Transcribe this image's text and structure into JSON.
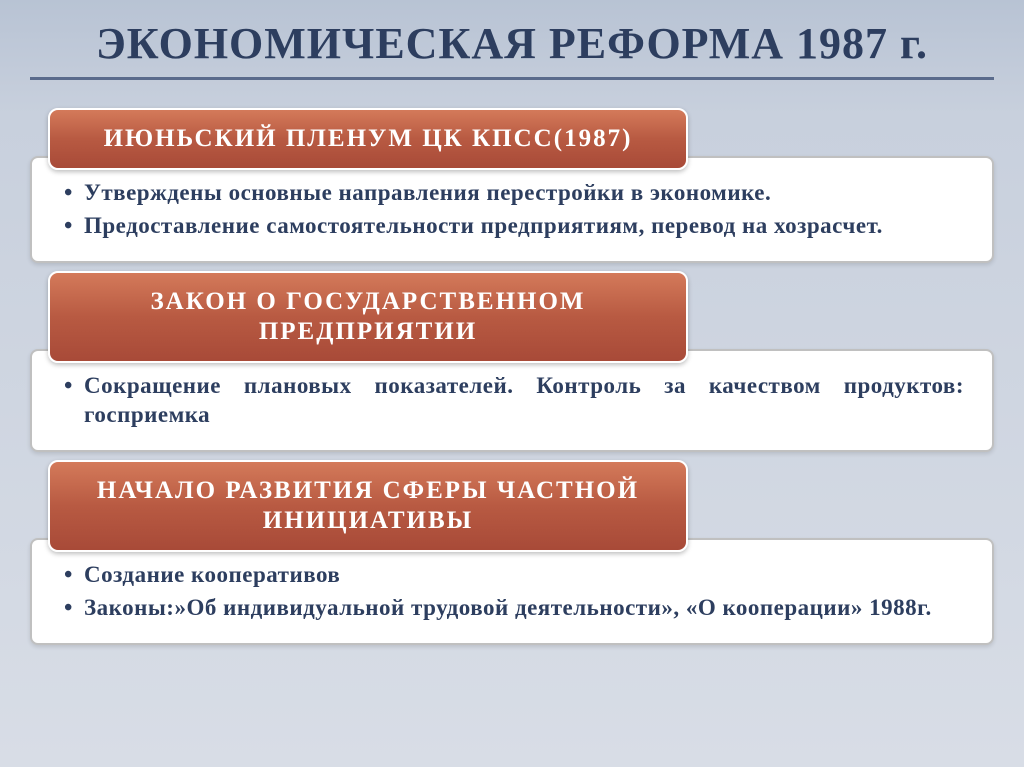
{
  "title": "ЭКОНОМИЧЕСКАЯ РЕФОРМА 1987 г.",
  "colors": {
    "title_color": "#2d3e5f",
    "underline_color": "#5a6b8c",
    "header_gradient_top": "#d47a5a",
    "header_gradient_mid": "#b85a42",
    "header_gradient_bottom": "#a84a38",
    "header_text": "#ffffff",
    "body_bg": "#ffffff",
    "body_text": "#2d3e5f",
    "body_border": "#c0c0c0",
    "slide_bg_top": "#b8c3d4",
    "slide_bg_bottom": "#d8dde6"
  },
  "typography": {
    "title_fontsize": 44,
    "header_fontsize": 25,
    "body_fontsize": 23,
    "font_family": "Georgia, Times New Roman, serif"
  },
  "sections": [
    {
      "header": "ИЮНЬСКИЙ  ПЛЕНУМ  ЦК  КПСС(1987)",
      "bullets": [
        "Утверждены основные направления перестройки в экономике.",
        "Предоставление самостоятельности предприятиям, перевод на хозрасчет."
      ]
    },
    {
      "header": "ЗАКОН  О  ГОСУДАРСТВЕННОМ ПРЕДПРИЯТИИ",
      "bullets": [
        "Сокращение плановых показателей. Контроль за качеством продуктов: госприемка"
      ]
    },
    {
      "header": "НАЧАЛО  РАЗВИТИЯ  СФЕРЫ ЧАСТНОЙ  ИНИЦИАТИВЫ",
      "bullets": [
        "Создание кооперативов",
        "Законы:»Об индивидуальной трудовой деятельности», «О кооперации» 1988г."
      ]
    }
  ]
}
